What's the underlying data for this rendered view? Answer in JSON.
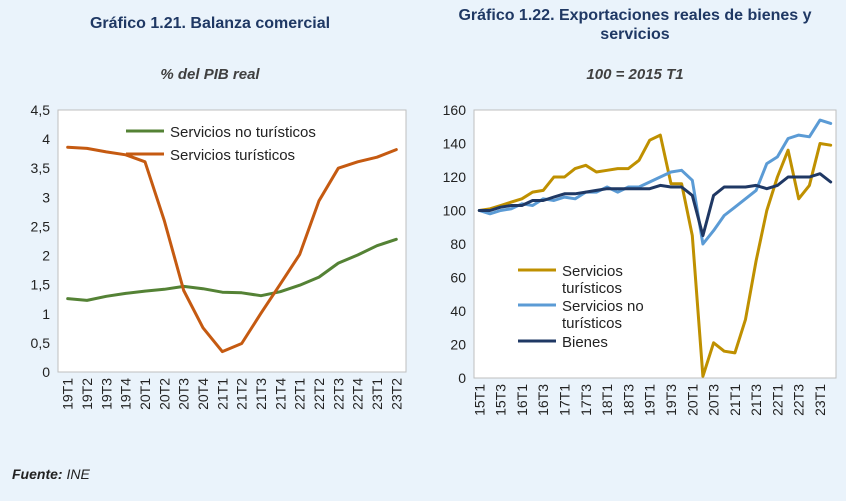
{
  "source": {
    "label": "Fuente:",
    "value": "INE"
  },
  "chart_data": [
    {
      "type": "line",
      "title": "Gráfico 1.21. Balanza comercial",
      "subtitle": "% del PIB real",
      "categories": [
        "19T1",
        "19T2",
        "19T3",
        "19T4",
        "20T1",
        "20T2",
        "20T3",
        "20T4",
        "21T1",
        "21T2",
        "21T3",
        "21T4",
        "22T1",
        "22T2",
        "22T3",
        "22T4",
        "23T1",
        "23T2"
      ],
      "ylim": [
        0,
        4.5
      ],
      "yticks": [
        "0",
        "0,5",
        "1",
        "1,5",
        "2",
        "2,5",
        "3",
        "3,5",
        "4",
        "4,5"
      ],
      "grid": false,
      "legend_position": "top",
      "series": [
        {
          "name": "Servicios no turísticos",
          "color": "#548235",
          "values": [
            1.26,
            1.23,
            1.3,
            1.35,
            1.39,
            1.42,
            1.47,
            1.43,
            1.37,
            1.36,
            1.31,
            1.38,
            1.49,
            1.63,
            1.87,
            2.01,
            2.17,
            2.28
          ]
        },
        {
          "name": "Servicios turísticos",
          "color": "#c55a11",
          "values": [
            3.86,
            3.84,
            3.78,
            3.73,
            3.61,
            2.6,
            1.4,
            0.76,
            0.35,
            0.49,
            1.01,
            1.51,
            2.02,
            2.94,
            3.5,
            3.61,
            3.69,
            3.82
          ]
        }
      ]
    },
    {
      "type": "line",
      "title": "Gráfico 1.22. Exportaciones reales de bienes y servicios",
      "subtitle": "100 = 2015 T1",
      "categories": [
        "15T1",
        "15T2",
        "15T3",
        "15T4",
        "16T1",
        "16T2",
        "16T3",
        "16T4",
        "17T1",
        "17T2",
        "17T3",
        "17T4",
        "18T1",
        "18T2",
        "18T3",
        "18T4",
        "19T1",
        "19T2",
        "19T3",
        "19T4",
        "20T1",
        "20T2",
        "20T3",
        "20T4",
        "21T1",
        "21T2",
        "21T3",
        "21T4",
        "22T1",
        "22T2",
        "22T3",
        "22T4",
        "23T1",
        "23T2"
      ],
      "tick_labels": [
        "15T1",
        "15T3",
        "16T1",
        "16T3",
        "17T1",
        "17T3",
        "18T1",
        "18T3",
        "19T1",
        "19T3",
        "20T1",
        "20T3",
        "21T1",
        "21T3",
        "22T1",
        "22T3",
        "23T1"
      ],
      "ylim": [
        0,
        160
      ],
      "yticks": [
        "0",
        "20",
        "40",
        "60",
        "80",
        "100",
        "120",
        "140",
        "160"
      ],
      "grid": false,
      "legend_position": "bottom-left",
      "series": [
        {
          "name": "Servicios turísticos",
          "color": "#bf9000",
          "values": [
            100,
            101,
            103,
            105,
            107,
            111,
            112,
            120,
            120,
            125,
            127,
            123,
            124,
            125,
            125,
            130,
            142,
            145,
            116,
            116,
            85,
            1,
            21,
            16,
            15,
            35,
            70,
            100,
            120,
            136,
            107,
            115,
            140,
            139
          ]
        },
        {
          "name": "Servicios no turísticos",
          "color": "#5b9bd5",
          "values": [
            100,
            98,
            100,
            101,
            104,
            103,
            107,
            106,
            108,
            107,
            111,
            111,
            114,
            111,
            114,
            114,
            117,
            120,
            123,
            124,
            118,
            80,
            88,
            97,
            102,
            107,
            112,
            128,
            132,
            143,
            145,
            144,
            154,
            152
          ]
        },
        {
          "name": "Bienes",
          "color": "#1f3864",
          "values": [
            100,
            100,
            102,
            103,
            103,
            106,
            106,
            108,
            110,
            110,
            111,
            112,
            113,
            113,
            113,
            113,
            113,
            115,
            114,
            114,
            109,
            85,
            109,
            114,
            114,
            114,
            115,
            113,
            115,
            120,
            120,
            120,
            122,
            117
          ]
        }
      ]
    }
  ]
}
